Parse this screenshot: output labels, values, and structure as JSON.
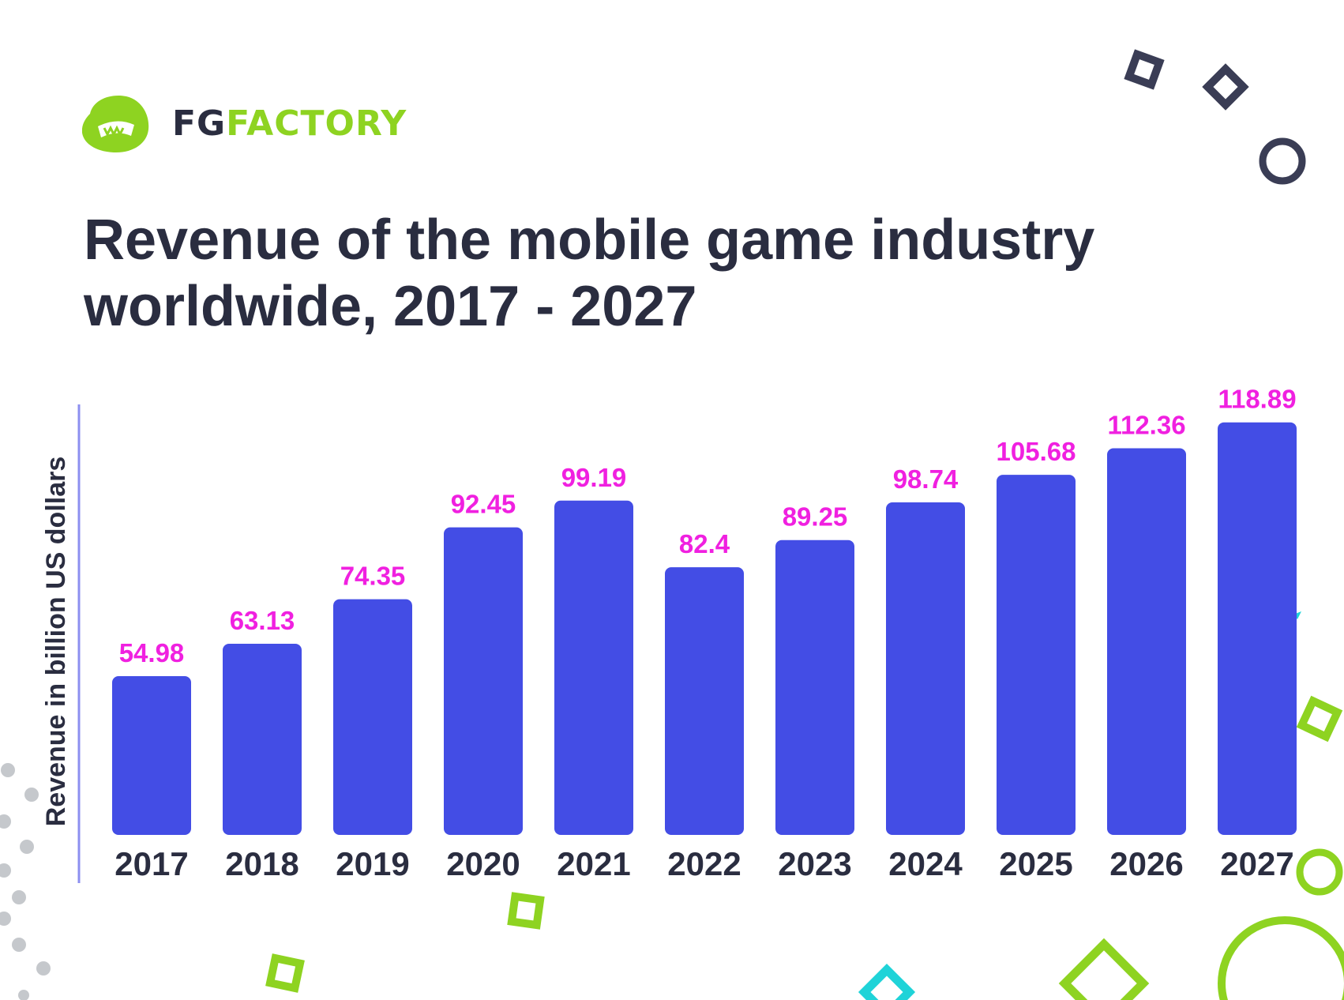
{
  "brand": {
    "fg": "FG",
    "factory": "FACTORY",
    "logo_color": "#8ed321",
    "logo_dark": "#2a2d40"
  },
  "title": {
    "line1": "Revenue of the mobile game industry",
    "line2": "worldwide, 2017 - 2027"
  },
  "chart_data": {
    "type": "bar",
    "title": "Revenue of the mobile game industry worldwide, 2017 - 2027",
    "xlabel": "",
    "ylabel": "Revenue in billion US dollars",
    "categories": [
      "2017",
      "2018",
      "2019",
      "2020",
      "2021",
      "2022",
      "2023",
      "2024",
      "2025",
      "2026",
      "2027"
    ],
    "values": [
      54.98,
      63.13,
      74.35,
      92.45,
      99.19,
      82.4,
      89.25,
      98.74,
      105.68,
      112.36,
      118.89
    ],
    "value_labels": [
      "54.98",
      "63.13",
      "74.35",
      "92.45",
      "99.19",
      "82.4",
      "89.25",
      "98.74",
      "105.68",
      "112.36",
      "118.89"
    ],
    "ylim": [
      15,
      125
    ],
    "grid": false,
    "legend": "none",
    "colors": {
      "bar": "#434de5",
      "value_label": "#f020e0",
      "tick_label": "#2a2d40",
      "axis_line": "#8c8ff0"
    }
  },
  "decorations": {
    "dark": "#3a3d55",
    "green": "#8ed321",
    "cyan": "#1fd3d8",
    "gray": "#c5c8cc"
  }
}
